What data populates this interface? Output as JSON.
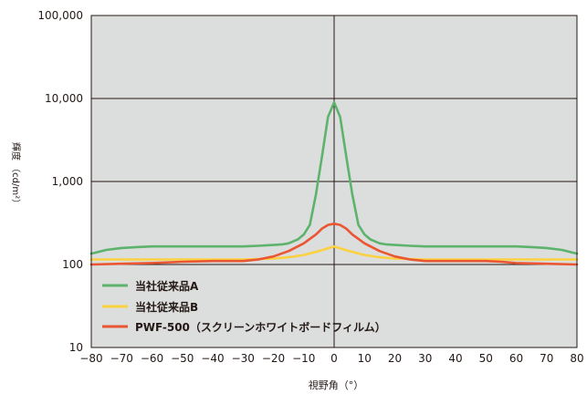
{
  "chart_data": {
    "type": "line",
    "title": "",
    "xlabel": "視野角（°）",
    "ylabel": "輝度 （cd/m²）",
    "yscale": "log",
    "xlim": [
      -80,
      80
    ],
    "ylim": [
      10,
      100000
    ],
    "grid": true,
    "legend_position": "bottom-left",
    "background_color": "#dcdddd",
    "x_ticks": [
      -80,
      -70,
      -60,
      -50,
      -40,
      -30,
      -20,
      -10,
      0,
      10,
      20,
      30,
      40,
      50,
      60,
      70,
      80
    ],
    "x_tick_labels": [
      "−80",
      "−70",
      "−60",
      "−50",
      "−40",
      "−30",
      "−20",
      "−10",
      "0",
      "10",
      "20",
      "30",
      "40",
      "50",
      "60",
      "70",
      "80"
    ],
    "y_ticks": [
      10,
      100,
      1000,
      10000,
      100000
    ],
    "y_tick_labels": [
      "10",
      "100",
      "1,000",
      "10,000",
      "100,000"
    ],
    "series": [
      {
        "name": "当社従来品A",
        "color": "#5db36b",
        "x": [
          -80,
          -75,
          -70,
          -65,
          -60,
          -55,
          -50,
          -45,
          -40,
          -35,
          -30,
          -25,
          -20,
          -17,
          -15,
          -12,
          -10,
          -8,
          -6,
          -4,
          -2,
          0,
          2,
          4,
          6,
          8,
          10,
          12,
          15,
          17,
          20,
          25,
          30,
          35,
          40,
          45,
          50,
          55,
          60,
          65,
          70,
          75,
          80
        ],
        "y": [
          135,
          150,
          158,
          162,
          165,
          165,
          165,
          165,
          165,
          165,
          165,
          168,
          172,
          175,
          180,
          200,
          230,
          300,
          700,
          2000,
          6000,
          9000,
          6000,
          2000,
          700,
          300,
          230,
          200,
          180,
          175,
          172,
          168,
          165,
          165,
          165,
          165,
          165,
          165,
          165,
          162,
          158,
          150,
          135
        ]
      },
      {
        "name": "当社従来品B",
        "color": "#fcd13f",
        "x": [
          -80,
          -70,
          -60,
          -50,
          -40,
          -30,
          -20,
          -15,
          -10,
          -5,
          0,
          5,
          10,
          15,
          20,
          30,
          40,
          50,
          60,
          70,
          80
        ],
        "y": [
          115,
          115,
          115,
          115,
          115,
          115,
          118,
          122,
          130,
          145,
          165,
          145,
          130,
          122,
          118,
          115,
          115,
          115,
          115,
          115,
          115
        ]
      },
      {
        "name": "PWF-500（スクリーンホワイトボードフィルム）",
        "color": "#ea5532",
        "x": [
          -80,
          -70,
          -60,
          -50,
          -40,
          -30,
          -25,
          -20,
          -15,
          -10,
          -6,
          -4,
          -2,
          0,
          2,
          4,
          6,
          10,
          15,
          20,
          25,
          30,
          40,
          50,
          55,
          60,
          70,
          80
        ],
        "y": [
          100,
          102,
          104,
          108,
          110,
          110,
          115,
          125,
          145,
          180,
          230,
          270,
          300,
          310,
          300,
          270,
          230,
          180,
          145,
          125,
          115,
          110,
          110,
          110,
          108,
          104,
          102,
          100
        ]
      }
    ]
  }
}
